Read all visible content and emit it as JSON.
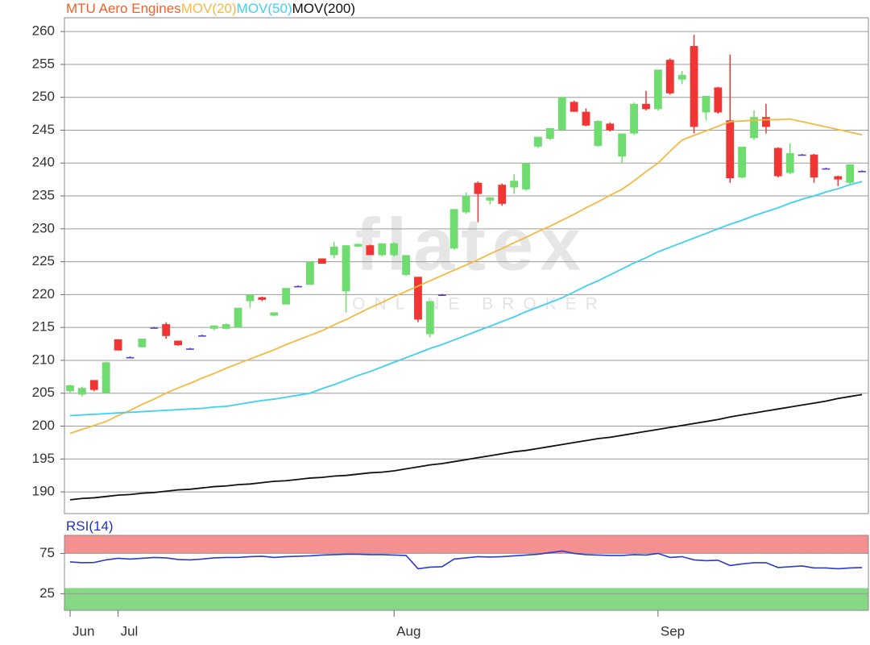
{
  "chart_data": [
    {
      "type": "candlestick",
      "title": "MTU Aero Engines",
      "title_color": "#f0602a",
      "up_color": "#6fdc6f",
      "down_color": "#f03535",
      "flat_color": "#5a3fc0",
      "ohlc": [
        [
          205.3,
          206.3,
          205.1,
          206.2
        ],
        [
          204.8,
          206,
          204.5,
          205.8
        ],
        [
          207,
          207,
          205.3,
          205.5
        ],
        [
          205,
          209.8,
          205,
          209.7
        ],
        [
          213.2,
          213.2,
          211.5,
          211.5
        ],
        [
          210.5,
          210.6,
          210.4,
          210.5
        ],
        [
          212,
          213.3,
          212,
          213.3
        ],
        [
          215,
          215.1,
          214.9,
          215
        ],
        [
          215.5,
          215.8,
          213.3,
          213.7
        ],
        [
          213,
          213,
          212.2,
          212.3
        ],
        [
          211.8,
          211.9,
          211.7,
          211.8
        ],
        [
          213.8,
          213.9,
          213.7,
          213.8
        ],
        [
          214.8,
          215.3,
          214.6,
          215.3
        ],
        [
          214.8,
          215.6,
          214.7,
          215.5
        ],
        [
          215,
          218,
          215,
          218
        ],
        [
          219,
          220,
          218,
          220
        ],
        [
          219.6,
          219.7,
          219,
          219.2
        ],
        [
          216.8,
          217.3,
          216.7,
          217.3
        ],
        [
          218.5,
          221,
          218.5,
          221
        ],
        [
          221.3,
          221.4,
          221.2,
          221.3
        ],
        [
          221.5,
          225,
          221.5,
          225
        ],
        [
          225.5,
          225.5,
          224.7,
          224.7
        ],
        [
          226,
          228,
          225.5,
          227.3
        ],
        [
          220.5,
          227.5,
          217.3,
          227.5
        ],
        [
          227.3,
          227.8,
          227.2,
          227.7
        ],
        [
          227.5,
          227.6,
          226,
          226
        ],
        [
          226,
          227.8,
          225.8,
          227.8
        ],
        [
          226,
          228,
          225.8,
          227.8
        ],
        [
          223,
          226,
          222.8,
          226
        ],
        [
          222.7,
          222.7,
          215.8,
          216.2
        ],
        [
          214,
          219,
          213.5,
          219
        ],
        [
          220,
          220.1,
          219.9,
          220
        ],
        [
          227,
          233,
          226.8,
          233
        ],
        [
          232.5,
          235.5,
          232.3,
          235
        ],
        [
          237,
          237.2,
          231,
          235.3
        ],
        [
          234.3,
          234.8,
          233.7,
          234.8
        ],
        [
          236.7,
          236.9,
          233.5,
          233.8
        ],
        [
          236.3,
          238.3,
          235.3,
          237.3
        ],
        [
          236,
          240,
          235.8,
          240
        ],
        [
          242.5,
          244,
          242.3,
          244
        ],
        [
          243.7,
          245.3,
          243.5,
          245.3
        ],
        [
          245,
          250,
          245,
          250
        ],
        [
          249.3,
          249.5,
          247.8,
          247.8
        ],
        [
          247.8,
          248.3,
          245.6,
          245.7
        ],
        [
          242.6,
          246.5,
          242.5,
          246.4
        ],
        [
          246,
          246.2,
          244.8,
          245
        ],
        [
          241,
          244.5,
          240,
          244.5
        ],
        [
          244.5,
          249.2,
          244.3,
          249
        ],
        [
          249,
          251,
          248,
          248.2
        ],
        [
          248.2,
          254.2,
          248,
          254.2
        ],
        [
          255.7,
          255.9,
          250.4,
          250.6
        ],
        [
          252.7,
          254,
          252,
          253.4
        ],
        [
          257.8,
          259.5,
          244.5,
          245.5
        ],
        [
          247.7,
          250.2,
          246.5,
          250.2
        ],
        [
          251.5,
          251.6,
          247.5,
          247.7
        ],
        [
          246.5,
          256.5,
          237,
          237.7
        ],
        [
          237.8,
          242.5,
          237.7,
          242.5
        ],
        [
          243.8,
          248,
          243.5,
          247
        ],
        [
          247,
          249,
          244.5,
          245.5
        ],
        [
          242.3,
          242.4,
          237.8,
          238
        ],
        [
          238.5,
          243,
          238.3,
          241.5
        ],
        [
          241.3,
          241.4,
          241.2,
          241.3
        ],
        [
          241.3,
          241.4,
          237,
          237.8
        ],
        [
          239.2,
          239.3,
          239.1,
          239.2
        ],
        [
          238,
          238.1,
          236.5,
          237.5
        ],
        [
          237,
          239.8,
          236.8,
          239.8
        ],
        [
          238.8,
          238.9,
          238.7,
          238.8
        ]
      ],
      "series": [
        {
          "name": "MOV(20)",
          "color": "#f5b942",
          "values": [
            198.9,
            199.5,
            200.1,
            200.7,
            201.6,
            202.4,
            203.3,
            204.1,
            205.0,
            205.8,
            206.5,
            207.3,
            208.0,
            208.8,
            209.5,
            210.2,
            210.9,
            211.6,
            212.4,
            213.1,
            213.8,
            214.5,
            215.4,
            216.2,
            217.1,
            218.0,
            218.8,
            219.7,
            220.5,
            221.3,
            222.1,
            222.9,
            223.7,
            224.5,
            225.3,
            226.2,
            227.0,
            227.9,
            228.7,
            229.6,
            230.4,
            231.3,
            232.2,
            233.2,
            234.1,
            235.1,
            236.0,
            237.3,
            238.7,
            240.0,
            241.8,
            243.5,
            244.2,
            244.9,
            245.6,
            246.3,
            246.4,
            246.5,
            246.6,
            246.6,
            246.7,
            246.3,
            245.9,
            245.5,
            245.1,
            244.7,
            244.3
          ]
        },
        {
          "name": "MOV(50)",
          "color": "#3fd0f0",
          "values": [
            201.6,
            201.7,
            201.8,
            201.9,
            202.0,
            202.1,
            202.2,
            202.3,
            202.4,
            202.5,
            202.6,
            202.7,
            202.9,
            203.0,
            203.3,
            203.6,
            203.9,
            204.1,
            204.4,
            204.7,
            205.0,
            205.7,
            206.3,
            207.0,
            207.7,
            208.3,
            209.0,
            209.7,
            210.4,
            211.1,
            211.8,
            212.4,
            213.1,
            213.8,
            214.5,
            215.2,
            215.9,
            216.6,
            217.4,
            218.1,
            218.8,
            219.5,
            220.4,
            221.3,
            222.1,
            223.0,
            223.9,
            224.8,
            225.6,
            226.5,
            227.2,
            227.9,
            228.6,
            229.3,
            230.0,
            230.7,
            231.3,
            232.0,
            232.6,
            233.2,
            233.9,
            234.5,
            235.0,
            235.6,
            236.1,
            236.7,
            237.2
          ]
        },
        {
          "name": "MOV(200)",
          "color": "#111111",
          "values": [
            188.8,
            189.0,
            189.1,
            189.3,
            189.5,
            189.6,
            189.8,
            189.9,
            190.1,
            190.3,
            190.4,
            190.6,
            190.8,
            190.9,
            191.1,
            191.2,
            191.4,
            191.6,
            191.7,
            191.9,
            192.1,
            192.2,
            192.4,
            192.5,
            192.7,
            192.9,
            193.0,
            193.2,
            193.5,
            193.8,
            194.1,
            194.3,
            194.6,
            194.9,
            195.2,
            195.5,
            195.8,
            196.1,
            196.3,
            196.6,
            196.9,
            197.2,
            197.5,
            197.8,
            198.1,
            198.3,
            198.6,
            198.9,
            199.2,
            199.5,
            199.8,
            200.1,
            200.4,
            200.7,
            201.0,
            201.4,
            201.7,
            202.0,
            202.3,
            202.6,
            202.9,
            203.2,
            203.5,
            203.8,
            204.2,
            204.5,
            204.8
          ]
        }
      ],
      "ylim": [
        186.7,
        262.1
      ],
      "yticks": [
        190,
        195,
        200,
        205,
        210,
        215,
        220,
        225,
        230,
        235,
        240,
        245,
        250,
        255,
        260
      ],
      "grid": true,
      "watermark": [
        "flatex",
        "ONLINE BROKER"
      ]
    },
    {
      "type": "line",
      "title": "RSI(14)",
      "title_color": "#2233bb",
      "color": "#2a3cc8",
      "categories": [
        "Jun",
        null,
        null,
        null,
        "Jul",
        null,
        null,
        null,
        null,
        null,
        null,
        null,
        null,
        null,
        null,
        null,
        null,
        null,
        null,
        null,
        null,
        null,
        null,
        null,
        null,
        null,
        null,
        "Aug",
        null,
        null,
        null,
        null,
        null,
        null,
        null,
        null,
        null,
        null,
        null,
        null,
        null,
        null,
        null,
        null,
        null,
        null,
        null,
        null,
        null,
        "Sep",
        null,
        null,
        null,
        null,
        null,
        null,
        null,
        null,
        null,
        null,
        null,
        null,
        null,
        null,
        null,
        null,
        null
      ],
      "values": [
        64.5,
        63.5,
        63.7,
        67,
        69,
        68,
        69,
        70,
        69.5,
        67.5,
        67,
        68,
        69.5,
        70,
        70,
        71,
        71.5,
        70,
        71,
        71.5,
        72,
        73,
        73.5,
        74,
        74,
        73.5,
        73.5,
        73,
        72.5,
        56,
        58,
        58.5,
        68,
        69.5,
        71,
        70.5,
        71,
        72,
        73,
        74,
        76,
        78,
        75,
        73.5,
        73,
        72.5,
        72.5,
        73.5,
        73,
        75,
        70,
        71,
        67,
        66,
        66.5,
        60,
        62,
        63.5,
        63.5,
        57.5,
        58.5,
        59.5,
        57,
        57,
        56,
        57,
        57.5
      ],
      "ylim": [
        4.4,
        97.4
      ],
      "yticks": [
        25,
        75
      ],
      "grid": true,
      "zones": [
        {
          "from": 75,
          "to": 97.4,
          "color": "#f59090"
        },
        {
          "from": 4.4,
          "to": 32,
          "color": "#86d886"
        }
      ]
    }
  ]
}
